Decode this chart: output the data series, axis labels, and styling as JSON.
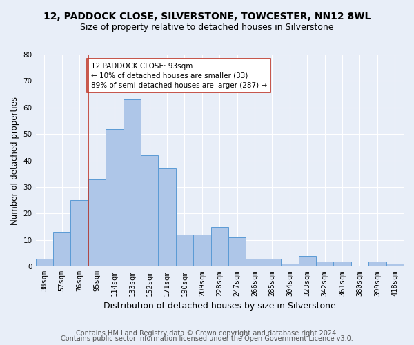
{
  "title1": "12, PADDOCK CLOSE, SILVERSTONE, TOWCESTER, NN12 8WL",
  "title2": "Size of property relative to detached houses in Silverstone",
  "xlabel": "Distribution of detached houses by size in Silverstone",
  "ylabel": "Number of detached properties",
  "categories": [
    "38sqm",
    "57sqm",
    "76sqm",
    "95sqm",
    "114sqm",
    "133sqm",
    "152sqm",
    "171sqm",
    "190sqm",
    "209sqm",
    "228sqm",
    "247sqm",
    "266sqm",
    "285sqm",
    "304sqm",
    "323sqm",
    "342sqm",
    "361sqm",
    "380sqm",
    "399sqm",
    "418sqm"
  ],
  "values": [
    3,
    13,
    25,
    33,
    52,
    63,
    42,
    37,
    12,
    12,
    15,
    11,
    3,
    3,
    1,
    4,
    2,
    2,
    0,
    2,
    1
  ],
  "bar_color": "#aec6e8",
  "bar_edge_color": "#5b9bd5",
  "vline_x_index": 3,
  "vline_color": "#c0392b",
  "annotation_line1": "12 PADDOCK CLOSE: 93sqm",
  "annotation_line2": "← 10% of detached houses are smaller (33)",
  "annotation_line3": "89% of semi-detached houses are larger (287) →",
  "annotation_box_color": "white",
  "annotation_box_edge": "#c0392b",
  "ylim": [
    0,
    80
  ],
  "yticks": [
    0,
    10,
    20,
    30,
    40,
    50,
    60,
    70,
    80
  ],
  "footer1": "Contains HM Land Registry data © Crown copyright and database right 2024.",
  "footer2": "Contains public sector information licensed under the Open Government Licence v3.0.",
  "bg_color": "#e8eef8",
  "plot_bg_color": "#e8eef8",
  "grid_color": "#ffffff",
  "title1_fontsize": 10,
  "title2_fontsize": 9,
  "xlabel_fontsize": 9,
  "ylabel_fontsize": 8.5,
  "tick_fontsize": 7.5,
  "footer_fontsize": 7
}
